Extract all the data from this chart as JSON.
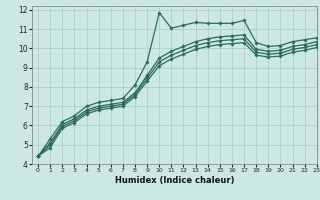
{
  "xlabel": "Humidex (Indice chaleur)",
  "bg_color": "#cce8e4",
  "grid_color": "#aad0cc",
  "line_color": "#2d6b5e",
  "xlim": [
    -0.5,
    23
  ],
  "ylim": [
    4,
    12.2
  ],
  "yticks": [
    4,
    5,
    6,
    7,
    8,
    9,
    10,
    11,
    12
  ],
  "xticks": [
    0,
    1,
    2,
    3,
    4,
    5,
    6,
    7,
    8,
    9,
    10,
    11,
    12,
    13,
    14,
    15,
    16,
    17,
    18,
    19,
    20,
    21,
    22,
    23
  ],
  "series": [
    {
      "x": [
        0,
        1,
        2,
        3,
        4,
        5,
        6,
        7,
        8,
        9,
        10,
        11,
        12,
        13,
        14,
        15,
        16,
        17,
        18,
        19,
        20,
        21,
        22,
        23
      ],
      "y": [
        4.4,
        5.3,
        6.2,
        6.5,
        7.0,
        7.2,
        7.3,
        7.4,
        8.1,
        9.3,
        11.85,
        11.05,
        11.2,
        11.35,
        11.3,
        11.3,
        11.3,
        11.45,
        10.3,
        10.1,
        10.15,
        10.35,
        10.45,
        10.55
      ]
    },
    {
      "x": [
        0,
        1,
        2,
        3,
        4,
        5,
        6,
        7,
        8,
        9,
        10,
        11,
        12,
        13,
        14,
        15,
        16,
        17,
        18,
        19,
        20,
        21,
        22,
        23
      ],
      "y": [
        4.4,
        5.1,
        6.05,
        6.35,
        6.8,
        7.0,
        7.1,
        7.2,
        7.7,
        8.6,
        9.5,
        9.85,
        10.1,
        10.35,
        10.5,
        10.6,
        10.65,
        10.7,
        9.95,
        9.85,
        9.9,
        10.1,
        10.2,
        10.35
      ]
    },
    {
      "x": [
        0,
        1,
        2,
        3,
        4,
        5,
        6,
        7,
        8,
        9,
        10,
        11,
        12,
        13,
        14,
        15,
        16,
        17,
        18,
        19,
        20,
        21,
        22,
        23
      ],
      "y": [
        4.4,
        5.0,
        5.95,
        6.25,
        6.7,
        6.9,
        7.0,
        7.1,
        7.6,
        8.45,
        9.3,
        9.65,
        9.9,
        10.15,
        10.3,
        10.4,
        10.45,
        10.5,
        9.8,
        9.7,
        9.75,
        9.95,
        10.05,
        10.2
      ]
    },
    {
      "x": [
        0,
        1,
        2,
        3,
        4,
        5,
        6,
        7,
        8,
        9,
        10,
        11,
        12,
        13,
        14,
        15,
        16,
        17,
        18,
        19,
        20,
        21,
        22,
        23
      ],
      "y": [
        4.4,
        4.85,
        5.85,
        6.15,
        6.6,
        6.8,
        6.9,
        7.0,
        7.5,
        8.3,
        9.1,
        9.45,
        9.7,
        9.95,
        10.1,
        10.2,
        10.25,
        10.3,
        9.65,
        9.55,
        9.6,
        9.8,
        9.9,
        10.05
      ]
    }
  ]
}
